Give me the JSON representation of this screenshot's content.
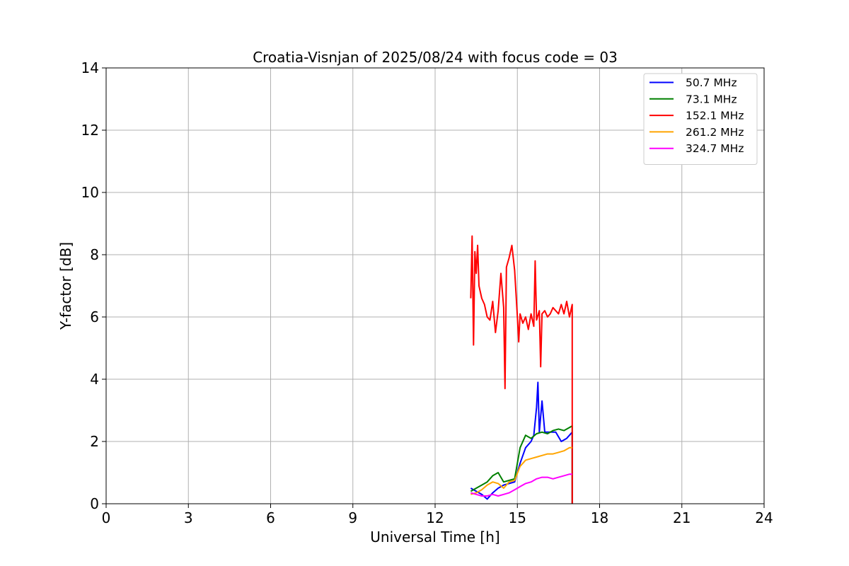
{
  "chart_data": {
    "type": "line",
    "title": "Croatia-Visnjan of 2025/08/24 with focus code = 03",
    "xlabel": "Universal Time [h]",
    "ylabel": "Y-factor [dB]",
    "xlim": [
      0,
      24
    ],
    "ylim": [
      0,
      14
    ],
    "xticks": [
      0,
      3,
      6,
      9,
      12,
      15,
      18,
      21,
      24
    ],
    "yticks": [
      0,
      2,
      4,
      6,
      8,
      10,
      12,
      14
    ],
    "grid": true,
    "legend_position": "top-right",
    "series": [
      {
        "name": " 50.7 MHz",
        "color": "#0000ff",
        "x": [
          13.3,
          13.5,
          13.7,
          13.9,
          14.1,
          14.3,
          14.5,
          14.7,
          14.9,
          15.1,
          15.3,
          15.5,
          15.6,
          15.7,
          15.75,
          15.8,
          15.9,
          16.0,
          16.2,
          16.4,
          16.6,
          16.8,
          17.0,
          17.0
        ],
        "y": [
          0.5,
          0.4,
          0.3,
          0.15,
          0.35,
          0.5,
          0.6,
          0.65,
          0.7,
          1.3,
          1.8,
          2.0,
          2.2,
          3.1,
          3.9,
          2.3,
          3.3,
          2.3,
          2.3,
          2.3,
          2.0,
          2.1,
          2.3,
          0.0
        ]
      },
      {
        "name": " 73.1 MHz",
        "color": "#008000",
        "x": [
          13.3,
          13.5,
          13.7,
          13.9,
          14.1,
          14.3,
          14.5,
          14.7,
          14.9,
          15.1,
          15.3,
          15.5,
          15.7,
          15.9,
          16.1,
          16.3,
          16.5,
          16.7,
          16.9,
          17.0,
          17.0
        ],
        "y": [
          0.4,
          0.5,
          0.6,
          0.7,
          0.9,
          1.0,
          0.7,
          0.75,
          0.8,
          1.8,
          2.2,
          2.1,
          2.25,
          2.3,
          2.25,
          2.35,
          2.4,
          2.35,
          2.45,
          2.5,
          0.0
        ]
      },
      {
        "name": " 152.1 MHz",
        "color": "#ff0000",
        "x": [
          13.3,
          13.35,
          13.4,
          13.45,
          13.5,
          13.55,
          13.6,
          13.7,
          13.8,
          13.9,
          14.0,
          14.1,
          14.2,
          14.3,
          14.4,
          14.5,
          14.55,
          14.6,
          14.7,
          14.8,
          14.9,
          15.0,
          15.05,
          15.1,
          15.2,
          15.3,
          15.4,
          15.5,
          15.6,
          15.65,
          15.7,
          15.8,
          15.85,
          15.9,
          16.0,
          16.1,
          16.2,
          16.3,
          16.4,
          16.5,
          16.6,
          16.7,
          16.8,
          16.9,
          17.0,
          17.0
        ],
        "y": [
          6.6,
          8.6,
          5.1,
          8.1,
          7.4,
          8.3,
          7.0,
          6.6,
          6.4,
          6.0,
          5.9,
          6.5,
          5.5,
          6.2,
          7.4,
          6.3,
          3.7,
          7.6,
          7.9,
          8.3,
          7.5,
          6.0,
          5.2,
          6.1,
          5.8,
          6.0,
          5.6,
          6.1,
          5.7,
          7.8,
          5.9,
          6.2,
          4.4,
          6.1,
          6.2,
          6.0,
          6.1,
          6.3,
          6.2,
          6.1,
          6.4,
          6.1,
          6.5,
          6.0,
          6.4,
          0.0
        ]
      },
      {
        "name": " 261.2 MHz",
        "color": "#ffa500",
        "x": [
          13.3,
          13.5,
          13.7,
          13.9,
          14.1,
          14.3,
          14.5,
          14.7,
          14.9,
          15.1,
          15.3,
          15.5,
          15.7,
          15.9,
          16.1,
          16.3,
          16.5,
          16.7,
          16.9,
          17.0
        ],
        "y": [
          0.3,
          0.35,
          0.45,
          0.6,
          0.7,
          0.65,
          0.5,
          0.7,
          0.75,
          1.2,
          1.4,
          1.45,
          1.5,
          1.55,
          1.6,
          1.6,
          1.65,
          1.7,
          1.8,
          1.8
        ]
      },
      {
        "name": " 324.7 MHz",
        "color": "#ff00ff",
        "x": [
          13.3,
          13.5,
          13.7,
          13.9,
          14.1,
          14.3,
          14.5,
          14.7,
          14.9,
          15.1,
          15.3,
          15.5,
          15.7,
          15.9,
          16.1,
          16.3,
          16.5,
          16.7,
          16.9,
          17.0
        ],
        "y": [
          0.35,
          0.3,
          0.25,
          0.25,
          0.3,
          0.25,
          0.3,
          0.35,
          0.45,
          0.55,
          0.65,
          0.7,
          0.8,
          0.85,
          0.85,
          0.8,
          0.85,
          0.9,
          0.95,
          0.95
        ]
      }
    ]
  }
}
